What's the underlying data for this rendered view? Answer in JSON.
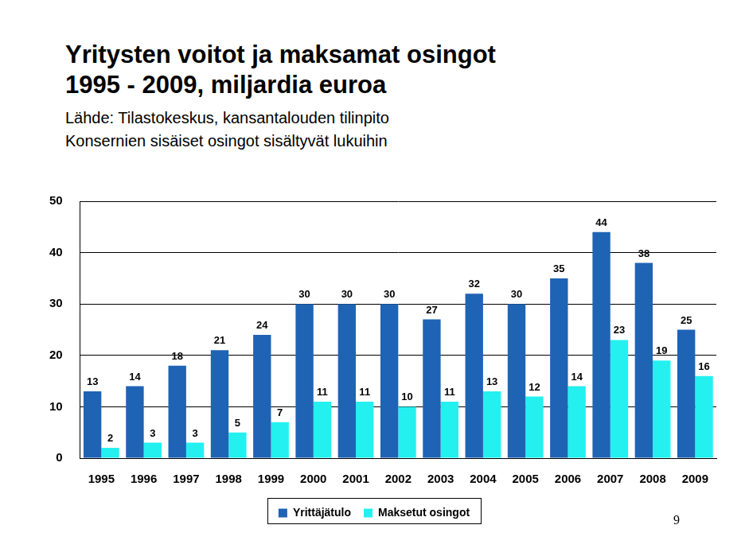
{
  "chart_data": {
    "type": "bar",
    "title": [
      "Yritysten voitot ja maksamat osingot",
      "1995 - 2009, miljardia euroa"
    ],
    "subtitle": [
      "Lähde: Tilastokeskus, kansantalouden tilinpito",
      "Konsernien sisäiset osingot sisältyvät lukuihin"
    ],
    "annotations": [
      "9"
    ],
    "categories": [
      "1995",
      "1996",
      "1997",
      "1998",
      "1999",
      "2000",
      "2001",
      "2002",
      "2003",
      "2004",
      "2005",
      "2006",
      "2007",
      "2008",
      "2009"
    ],
    "series": [
      {
        "name": "Yrittäjätulo",
        "color": "#1f63b4",
        "values": [
          13,
          14,
          18,
          21,
          24,
          30,
          30,
          30,
          27,
          32,
          30,
          35,
          44,
          38,
          25
        ]
      },
      {
        "name": "Maksetut osingot",
        "color": "#24f0f0",
        "values": [
          2,
          3,
          3,
          5,
          7,
          11,
          11,
          10,
          11,
          13,
          12,
          14,
          23,
          19,
          16
        ]
      }
    ],
    "ylim": [
      0,
      50
    ],
    "yticks": [
      0,
      10,
      20,
      30,
      40,
      50
    ],
    "grid": true,
    "legend": "bottom",
    "data_labels": true
  }
}
